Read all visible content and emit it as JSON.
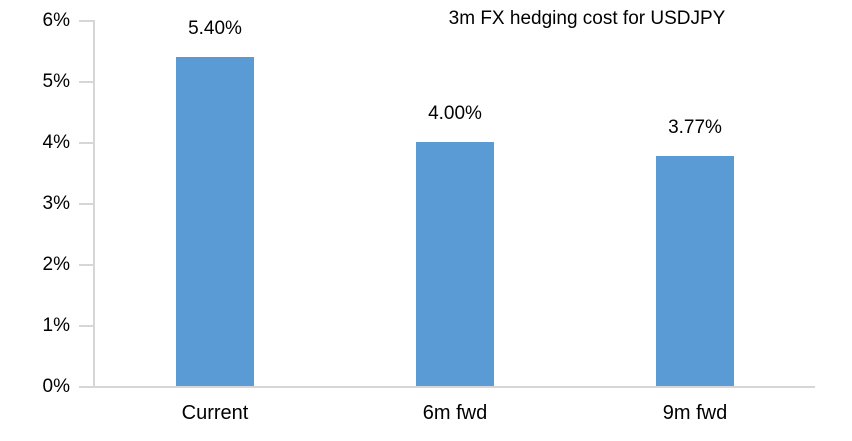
{
  "title": "3m FX hedging cost for USDJPY",
  "colors": {
    "bar": "#5B9BD5",
    "axis": "#D6D6D6",
    "text": "#000000",
    "background": "#FFFFFF"
  },
  "chart_data": {
    "type": "bar",
    "categories": [
      "Current",
      "6m fwd",
      "9m fwd"
    ],
    "values": [
      5.4,
      4.0,
      3.77
    ],
    "data_labels": [
      "5.40%",
      "4.00%",
      "3.77%"
    ],
    "title": "3m FX hedging cost for USDJPY",
    "xlabel": "",
    "ylabel": "",
    "ylim": [
      0,
      6
    ],
    "ytick_step": 1,
    "ytick_labels": [
      "0%",
      "1%",
      "2%",
      "3%",
      "4%",
      "5%",
      "6%"
    ],
    "grid": false,
    "legend": false,
    "data_labels_shown": true
  }
}
